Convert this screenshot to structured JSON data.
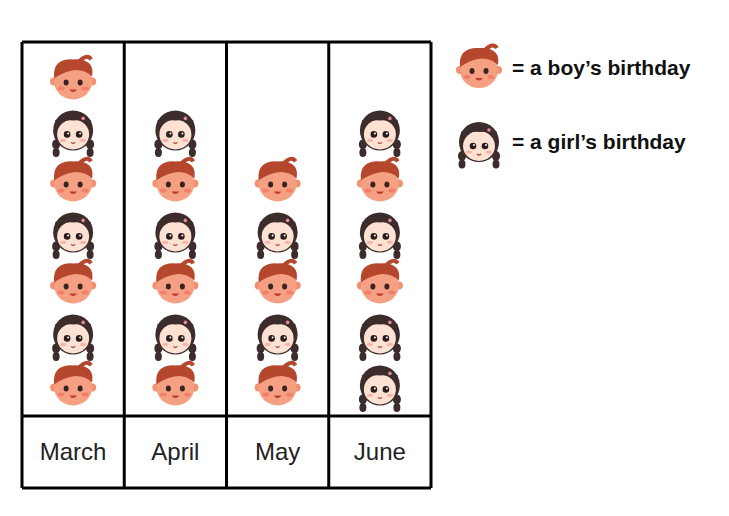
{
  "chart_data": {
    "type": "pictograph",
    "categories": [
      "March",
      "April",
      "May",
      "June"
    ],
    "series": [
      {
        "name": "= a boy’s birthday",
        "color": "#b5472d",
        "values": [
          4,
          3,
          3,
          2
        ]
      },
      {
        "name": "= a girl’s birthday",
        "color": "#3d2c2c",
        "values": [
          3,
          3,
          2,
          4
        ]
      }
    ],
    "tick_labels": "x",
    "legend": "upper right"
  }
}
